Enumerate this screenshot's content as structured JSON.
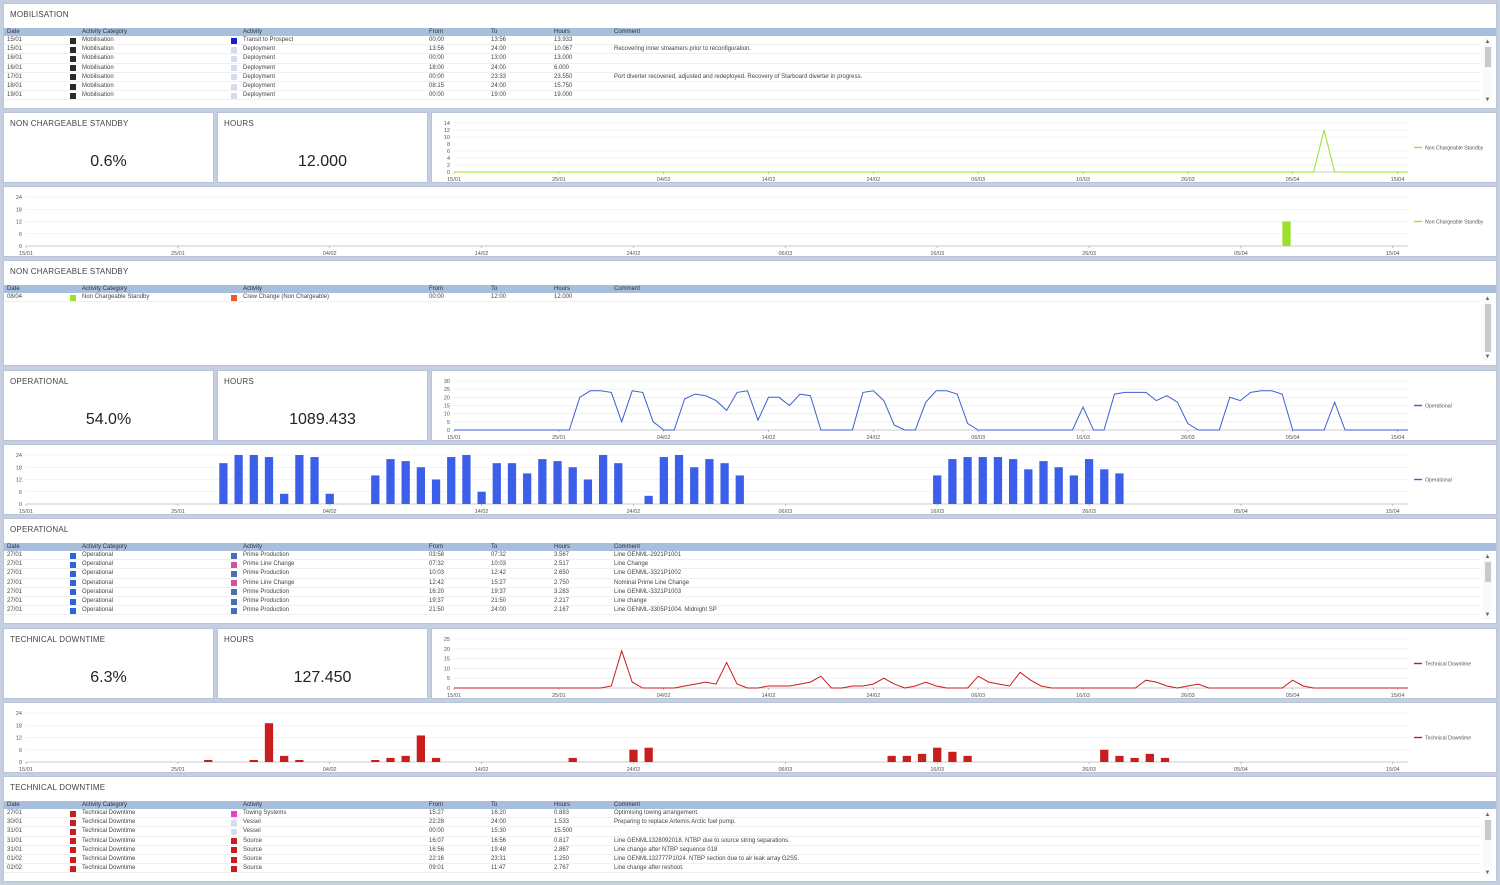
{
  "columns": [
    "Date",
    "Activity Category",
    "Activity",
    "From",
    "To",
    "Hours",
    "Comment"
  ],
  "tables": {
    "mob": {
      "title": "MOBILISATION",
      "rows": [
        [
          "15/01",
          "Mobilisation",
          "#2b2b2b",
          "Transit to Prospect",
          "#1a1ad6",
          "00:00",
          "13:56",
          "13.933",
          ""
        ],
        [
          "15/01",
          "Mobilisation",
          "#2b2b2b",
          "Deployment",
          "#d6dbef",
          "13:56",
          "24:00",
          "10.067",
          "Recovering inner streamers prior to reconfiguration."
        ],
        [
          "16/01",
          "Mobilisation",
          "#2b2b2b",
          "Deployment",
          "#d6dbef",
          "00:00",
          "13:00",
          "13.000",
          ""
        ],
        [
          "16/01",
          "Mobilisation",
          "#2b2b2b",
          "Deployment",
          "#d6dbef",
          "18:00",
          "24:00",
          "6.000",
          ""
        ],
        [
          "17/01",
          "Mobilisation",
          "#2b2b2b",
          "Deployment",
          "#d6dbef",
          "00:00",
          "23:33",
          "23.550",
          "Port diverter recovered, adjusted and redeployed. Recovery of Starboard diverter in progress."
        ],
        [
          "18/01",
          "Mobilisation",
          "#2b2b2b",
          "Deployment",
          "#d6dbef",
          "08:15",
          "24:00",
          "15.750",
          ""
        ],
        [
          "19/01",
          "Mobilisation",
          "#2b2b2b",
          "Deployment",
          "#d6dbef",
          "00:00",
          "19:00",
          "19.000",
          ""
        ]
      ]
    },
    "ncs": {
      "title": "NON CHARGEABLE STANDBY",
      "rows": [
        [
          "08/04",
          "Non Chargeable Standby",
          "#9be02a",
          "Crew Change (Non Chargeable)",
          "#f05a28",
          "00:00",
          "12:00",
          "12.000",
          ""
        ]
      ]
    },
    "op": {
      "title": "OPERATIONAL",
      "rows": [
        [
          "27/01",
          "Operational",
          "#2f63d8",
          "Prime Production",
          "#4a6fb0",
          "03:58",
          "07:32",
          "3.567",
          "Line GENML-2921P1001"
        ],
        [
          "27/01",
          "Operational",
          "#2f63d8",
          "Prime Line Change",
          "#d9509a",
          "07:32",
          "10:03",
          "2.517",
          "Line Change"
        ],
        [
          "27/01",
          "Operational",
          "#2f63d8",
          "Prime Production",
          "#4a6fb0",
          "10:03",
          "12:42",
          "2.650",
          "Line GENML-3321P1002"
        ],
        [
          "27/01",
          "Operational",
          "#2f63d8",
          "Prime Line Change",
          "#d9509a",
          "12:42",
          "15:27",
          "2.750",
          "Nominal Prime Line Change"
        ],
        [
          "27/01",
          "Operational",
          "#2f63d8",
          "Prime Production",
          "#4a6fb0",
          "16:20",
          "19:37",
          "3.283",
          "Line GENML-3321P1003"
        ],
        [
          "27/01",
          "Operational",
          "#2f63d8",
          "Prime Production",
          "#4a6fb0",
          "19:37",
          "21:50",
          "2.217",
          "Line change"
        ],
        [
          "27/01",
          "Operational",
          "#2f63d8",
          "Prime Production",
          "#4a6fb0",
          "21:50",
          "24:00",
          "2.167",
          "Line GENML-3305P1004. Midnight SP"
        ]
      ]
    },
    "td": {
      "title": "TECHNICAL DOWNTIME",
      "rows": [
        [
          "27/01",
          "Technical Downtime",
          "#c81e1e",
          "Towing Systems",
          "#f03cc8",
          "15:27",
          "16:20",
          "0.883",
          "Optimising towing arrangement."
        ],
        [
          "30/01",
          "Technical Downtime",
          "#c81e1e",
          "Vessel",
          "#d6dbef",
          "22:28",
          "24:00",
          "1.533",
          "Preparing to replace Artemis Arctic fuel pump."
        ],
        [
          "31/01",
          "Technical Downtime",
          "#c81e1e",
          "Vessel",
          "#d6dbef",
          "00:00",
          "15:30",
          "15.500",
          ""
        ],
        [
          "31/01",
          "Technical Downtime",
          "#c81e1e",
          "Source",
          "#c81e1e",
          "16:07",
          "16:56",
          "0.817",
          "Line GENML1328092018. NTBP due to source string separations."
        ],
        [
          "31/01",
          "Technical Downtime",
          "#c81e1e",
          "Source",
          "#c81e1e",
          "16:56",
          "19:48",
          "2.867",
          "Line change after NTBP sequence 018"
        ],
        [
          "01/02",
          "Technical Downtime",
          "#c81e1e",
          "Source",
          "#c81e1e",
          "22:16",
          "23:31",
          "1.250",
          "Line GENML132777P1024. NTBP section due to air leak array G2S5."
        ],
        [
          "02/02",
          "Technical Downtime",
          "#c81e1e",
          "Source",
          "#c81e1e",
          "09:01",
          "11:47",
          "2.767",
          "Line change after reshoot."
        ]
      ]
    }
  },
  "kpis": {
    "ncs": {
      "title": "NON CHARGEABLE STANDBY",
      "value": "0.6%",
      "hours_title": "HOURS",
      "hours": "12.000"
    },
    "op": {
      "title": "OPERATIONAL",
      "value": "54.0%",
      "hours_title": "HOURS",
      "hours": "1089.433"
    },
    "td": {
      "title": "TECHNICAL DOWNTIME",
      "value": "6.3%",
      "hours_title": "HOURS",
      "hours": "127.450"
    }
  },
  "chart_data": [
    {
      "id": "ncs-line",
      "type": "line",
      "color": "#9be02a",
      "x_ticks": [
        "15/01",
        "25/01",
        "04/02",
        "14/02",
        "24/02",
        "06/03",
        "16/03",
        "26/03",
        "05/04",
        "15/04"
      ],
      "ylim": [
        0,
        14
      ],
      "y_ticks": [
        0,
        2,
        4,
        6,
        8,
        10,
        12,
        14
      ],
      "series": [
        {
          "name": "Non Chargeable Standby",
          "days": 92,
          "values": [
            0,
            0,
            0,
            0,
            0,
            0,
            0,
            0,
            0,
            0,
            0,
            0,
            0,
            0,
            0,
            0,
            0,
            0,
            0,
            0,
            0,
            0,
            0,
            0,
            0,
            0,
            0,
            0,
            0,
            0,
            0,
            0,
            0,
            0,
            0,
            0,
            0,
            0,
            0,
            0,
            0,
            0,
            0,
            0,
            0,
            0,
            0,
            0,
            0,
            0,
            0,
            0,
            0,
            0,
            0,
            0,
            0,
            0,
            0,
            0,
            0,
            0,
            0,
            0,
            0,
            0,
            0,
            0,
            0,
            0,
            0,
            0,
            0,
            0,
            0,
            0,
            0,
            0,
            0,
            0,
            0,
            0,
            0,
            12,
            0,
            0,
            0,
            0,
            0,
            0,
            0,
            0
          ]
        }
      ]
    },
    {
      "id": "ncs-bar",
      "type": "bar",
      "color": "#9be02a",
      "x_ticks": [
        "15/01",
        "25/01",
        "04/02",
        "14/02",
        "24/02",
        "06/03",
        "16/03",
        "26/03",
        "05/04",
        "15/04"
      ],
      "ylim": [
        0,
        24
      ],
      "y_ticks": [
        0,
        6,
        12,
        18,
        24
      ],
      "series": [
        {
          "name": "Non Chargeable Standby",
          "days": 92,
          "values": [
            0,
            0,
            0,
            0,
            0,
            0,
            0,
            0,
            0,
            0,
            0,
            0,
            0,
            0,
            0,
            0,
            0,
            0,
            0,
            0,
            0,
            0,
            0,
            0,
            0,
            0,
            0,
            0,
            0,
            0,
            0,
            0,
            0,
            0,
            0,
            0,
            0,
            0,
            0,
            0,
            0,
            0,
            0,
            0,
            0,
            0,
            0,
            0,
            0,
            0,
            0,
            0,
            0,
            0,
            0,
            0,
            0,
            0,
            0,
            0,
            0,
            0,
            0,
            0,
            0,
            0,
            0,
            0,
            0,
            0,
            0,
            0,
            0,
            0,
            0,
            0,
            0,
            0,
            0,
            0,
            0,
            0,
            0,
            12,
            0,
            0,
            0,
            0,
            0,
            0,
            0,
            0
          ]
        }
      ]
    },
    {
      "id": "op-line",
      "type": "line",
      "color": "#3b5fd0",
      "x_ticks": [
        "15/01",
        "25/01",
        "04/02",
        "14/02",
        "24/02",
        "06/03",
        "16/03",
        "26/03",
        "05/04",
        "15/04"
      ],
      "ylim": [
        0,
        30
      ],
      "y_ticks": [
        0,
        5,
        10,
        15,
        20,
        25,
        30
      ],
      "series": [
        {
          "name": "Operational",
          "days": 92,
          "values": [
            0,
            0,
            0,
            0,
            0,
            0,
            0,
            0,
            0,
            0,
            0,
            0,
            20,
            24,
            24,
            23,
            5,
            24,
            23,
            5,
            0,
            0,
            19,
            22,
            21,
            18,
            12,
            23,
            24,
            6,
            20,
            20,
            15,
            22,
            21,
            0,
            0,
            0,
            0,
            23,
            24,
            18,
            3,
            0,
            0,
            17,
            24,
            24,
            22,
            4,
            0,
            0,
            0,
            0,
            0,
            0,
            0,
            0,
            0,
            0,
            14,
            0,
            0,
            22,
            23,
            23,
            23,
            18,
            21,
            17,
            4,
            0,
            0,
            0,
            20,
            18,
            23,
            24,
            24,
            22,
            0,
            0,
            0,
            0,
            17,
            0,
            0,
            0,
            0,
            0,
            0,
            0
          ]
        }
      ]
    },
    {
      "id": "op-bar",
      "type": "bar",
      "color": "#3b5fe8",
      "x_ticks": [
        "15/01",
        "25/01",
        "04/02",
        "14/02",
        "24/02",
        "06/03",
        "16/03",
        "26/03",
        "05/04",
        "15/04"
      ],
      "ylim": [
        0,
        24
      ],
      "y_ticks": [
        0,
        6,
        12,
        18,
        24
      ],
      "series": [
        {
          "name": "Operational",
          "days": 92,
          "values": [
            0,
            0,
            0,
            0,
            0,
            0,
            0,
            0,
            0,
            0,
            0,
            0,
            0,
            20,
            24,
            24,
            23,
            5,
            24,
            23,
            5,
            0,
            0,
            14,
            22,
            21,
            18,
            12,
            23,
            24,
            6,
            20,
            20,
            15,
            22,
            21,
            18,
            12,
            24,
            20,
            0,
            4,
            23,
            24,
            18,
            22,
            20,
            14,
            0,
            0,
            0,
            0,
            0,
            0,
            0,
            0,
            0,
            0,
            0,
            0,
            14,
            22,
            23,
            23,
            23,
            22,
            17,
            21,
            18,
            14,
            22,
            17,
            15,
            0,
            0,
            0,
            0,
            0,
            0,
            0,
            0,
            0,
            0,
            0,
            0,
            0,
            0,
            0,
            0,
            0,
            0,
            0
          ]
        }
      ]
    },
    {
      "id": "td-line",
      "type": "line",
      "color": "#c81e1e",
      "x_ticks": [
        "15/01",
        "25/01",
        "04/02",
        "14/02",
        "24/02",
        "06/03",
        "16/03",
        "26/03",
        "05/04",
        "15/04"
      ],
      "ylim": [
        0,
        25
      ],
      "y_ticks": [
        0,
        5,
        10,
        15,
        20,
        25
      ],
      "series": [
        {
          "name": "Technical Downtime",
          "days": 92,
          "values": [
            0,
            0,
            0,
            0,
            0,
            0,
            0,
            0,
            0,
            0,
            0,
            0,
            0,
            0,
            0,
            1,
            19,
            3,
            0,
            0,
            0,
            0,
            1,
            2,
            3,
            2,
            13,
            2,
            0,
            0,
            1,
            1,
            1,
            2,
            3,
            6,
            0,
            0,
            1,
            1,
            2,
            5,
            2,
            0,
            1,
            3,
            1,
            0,
            0,
            0,
            6,
            3,
            2,
            1,
            8,
            4,
            1,
            0,
            0,
            0,
            0,
            0,
            0,
            0,
            0,
            0,
            4,
            3,
            1,
            0,
            1,
            2,
            0,
            0,
            0,
            0,
            0,
            0,
            0,
            0,
            4,
            1,
            0,
            0,
            0,
            0,
            0,
            0,
            0,
            0,
            0,
            0
          ]
        }
      ]
    },
    {
      "id": "td-bar",
      "type": "bar",
      "color": "#c81e1e",
      "x_ticks": [
        "15/01",
        "25/01",
        "04/02",
        "14/02",
        "24/02",
        "06/03",
        "16/03",
        "26/03",
        "05/04",
        "15/04"
      ],
      "ylim": [
        0,
        24
      ],
      "y_ticks": [
        0,
        6,
        12,
        18,
        24
      ],
      "series": [
        {
          "name": "Technical Downtime",
          "days": 92,
          "values": [
            0,
            0,
            0,
            0,
            0,
            0,
            0,
            0,
            0,
            0,
            0,
            0,
            1,
            0,
            0,
            1,
            19,
            3,
            1,
            0,
            0,
            0,
            0,
            1,
            2,
            3,
            13,
            2,
            0,
            0,
            0,
            0,
            0,
            0,
            0,
            0,
            2,
            0,
            0,
            0,
            6,
            7,
            0,
            0,
            0,
            0,
            0,
            0,
            0,
            0,
            0,
            0,
            0,
            0,
            0,
            0,
            0,
            3,
            3,
            4,
            7,
            5,
            3,
            0,
            0,
            0,
            0,
            0,
            0,
            0,
            0,
            6,
            3,
            2,
            4,
            2,
            0,
            0,
            0,
            0,
            0,
            0,
            0,
            0,
            0,
            0,
            0,
            0,
            0,
            0,
            0,
            0
          ]
        }
      ]
    }
  ]
}
